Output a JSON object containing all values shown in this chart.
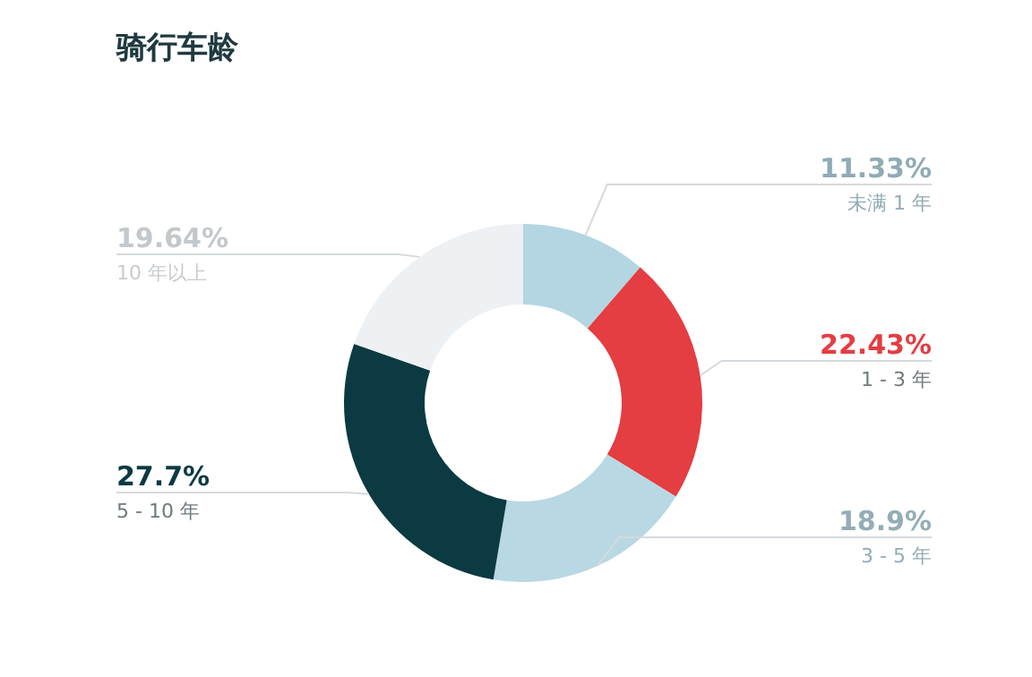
{
  "chart_data": {
    "type": "donut",
    "title": "骑行车龄",
    "categories": [
      "未满 1 年",
      "1 - 3 年",
      "3 - 5 年",
      "5 - 10 年",
      "10 年以上"
    ],
    "values": [
      11.33,
      22.43,
      18.9,
      27.7,
      19.64
    ],
    "value_labels": [
      "11.33%",
      "22.43%",
      "18.9%",
      "27.7%",
      "19.64%"
    ],
    "colors": [
      "#b3d6e2",
      "#e43d42",
      "#b8d8e3",
      "#0b3a42",
      "#eef1f4"
    ]
  }
}
